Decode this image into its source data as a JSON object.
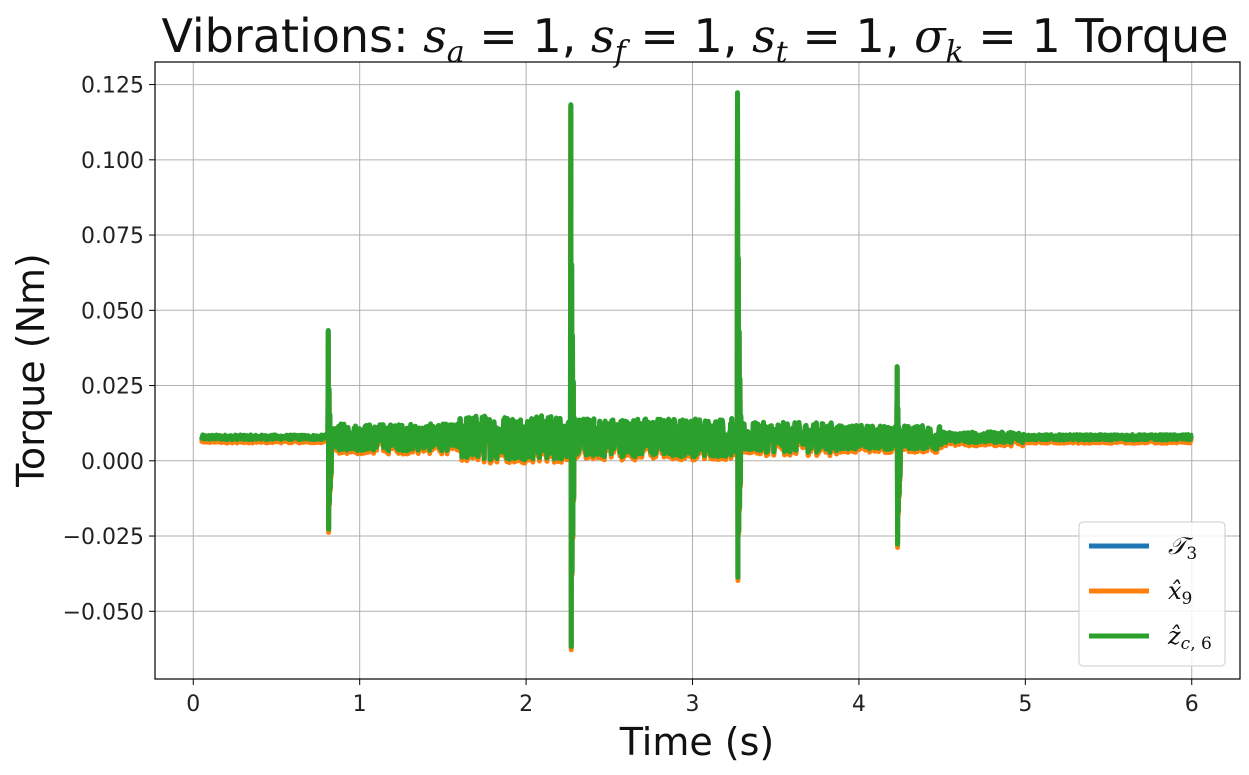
{
  "chart_data": {
    "type": "line",
    "title": {
      "prefix": "Vibrations",
      "s_a": "1",
      "s_f": "1",
      "s_t": "1",
      "sigma_k": "1",
      "suffix": "Torque"
    },
    "xlabel": "Time (s)",
    "ylabel": "Torque (Nm)",
    "xlim": [
      -0.23,
      6.29
    ],
    "ylim": [
      -0.0725,
      0.1325
    ],
    "xticks": [
      0,
      1,
      2,
      3,
      4,
      5,
      6
    ],
    "xtick_labels": [
      "0",
      "1",
      "2",
      "3",
      "4",
      "5",
      "6"
    ],
    "yticks": [
      -0.05,
      -0.025,
      0.0,
      0.025,
      0.05,
      0.075,
      0.1,
      0.125
    ],
    "ytick_labels": [
      "−0.050",
      "−0.025",
      "0.000",
      "0.025",
      "0.050",
      "0.075",
      "0.100",
      "0.125"
    ],
    "grid": true,
    "legend_position": "lower right",
    "series": [
      {
        "name": "T_3",
        "color": "#1f77b4"
      },
      {
        "name": "x_9",
        "color": "#ff7f0e"
      },
      {
        "name": "z_c6",
        "color": "#2ca02c"
      }
    ],
    "data_range": {
      "x_start": 0.05,
      "x_end": 6.0,
      "baseline": 0.0075
    },
    "segments": [
      {
        "from": 0.05,
        "to": 0.8,
        "amp": 0.0008
      },
      {
        "from": 0.8,
        "to": 0.86,
        "amp": 0.003
      },
      {
        "from": 0.86,
        "to": 1.6,
        "amp": 0.0045
      },
      {
        "from": 1.6,
        "to": 2.25,
        "amp": 0.0075
      },
      {
        "from": 2.25,
        "to": 3.25,
        "amp": 0.0065
      },
      {
        "from": 3.25,
        "to": 3.9,
        "amp": 0.005
      },
      {
        "from": 3.9,
        "to": 4.5,
        "amp": 0.004
      },
      {
        "from": 4.5,
        "to": 5.0,
        "amp": 0.0018
      },
      {
        "from": 5.0,
        "to": 6.0,
        "amp": 0.0009
      }
    ],
    "spikes": [
      {
        "x": 0.81,
        "max": 0.043,
        "min": -0.023
      },
      {
        "x": 2.27,
        "max": 0.118,
        "min": -0.062
      },
      {
        "x": 3.27,
        "max": 0.122,
        "min": -0.039
      },
      {
        "x": 4.23,
        "max": 0.031,
        "min": -0.028
      }
    ]
  }
}
